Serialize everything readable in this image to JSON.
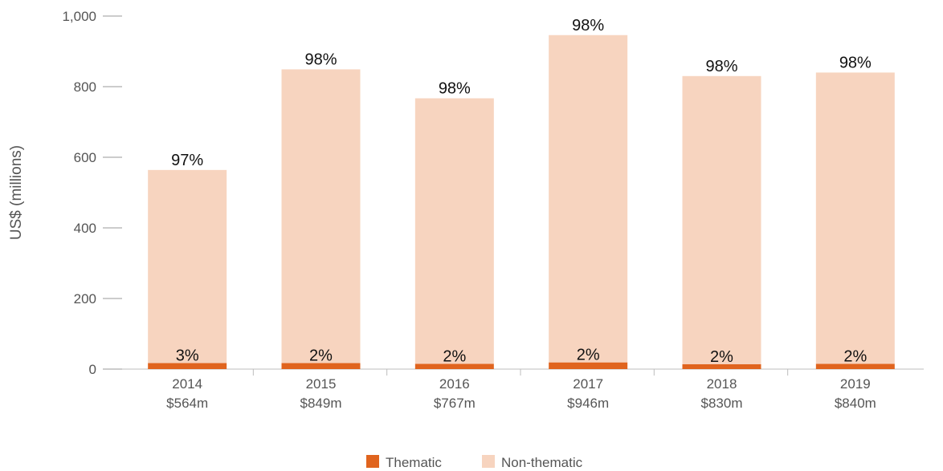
{
  "chart_data": {
    "type": "bar",
    "stacked": true,
    "title": "",
    "xlabel": "",
    "ylabel": "US$ (millions)",
    "ylim": [
      0,
      1000
    ],
    "yticks": [
      0,
      200,
      400,
      600,
      800,
      1000
    ],
    "ytick_labels": [
      "0",
      "200",
      "400",
      "600",
      "800",
      "1,000"
    ],
    "grid": false,
    "legend_position": "bottom-center",
    "categories": [
      "2014",
      "2015",
      "2016",
      "2017",
      "2018",
      "2019"
    ],
    "category_totals": [
      "$564m",
      "$849m",
      "$767m",
      "$946m",
      "$830m",
      "$840m"
    ],
    "series": [
      {
        "name": "Thematic",
        "color": "#e0641e",
        "values": [
          17,
          17,
          15,
          19,
          14,
          15
        ],
        "labels": [
          "3%",
          "2%",
          "2%",
          "2%",
          "2%",
          "2%"
        ]
      },
      {
        "name": "Non-thematic",
        "color": "#f7d4bf",
        "values": [
          547,
          832,
          752,
          927,
          816,
          825
        ],
        "labels": [
          "97%",
          "98%",
          "98%",
          "98%",
          "98%",
          "98%"
        ]
      }
    ]
  }
}
